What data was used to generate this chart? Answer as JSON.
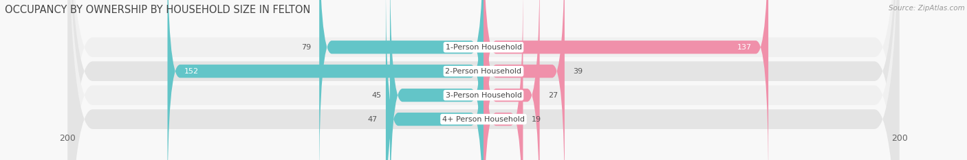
{
  "title": "OCCUPANCY BY OWNERSHIP BY HOUSEHOLD SIZE IN FELTON",
  "source": "Source: ZipAtlas.com",
  "categories": [
    "1-Person Household",
    "2-Person Household",
    "3-Person Household",
    "4+ Person Household"
  ],
  "owner_values": [
    79,
    152,
    45,
    47
  ],
  "renter_values": [
    137,
    39,
    27,
    19
  ],
  "owner_color": "#63c5c8",
  "renter_color": "#f090aa",
  "row_bg_colors": [
    "#f0f0f0",
    "#e4e4e4",
    "#f0f0f0",
    "#e4e4e4"
  ],
  "axis_max": 200,
  "label_fontsize": 8.0,
  "title_fontsize": 10.5,
  "source_fontsize": 7.5,
  "bg_color": "#f8f8f8"
}
